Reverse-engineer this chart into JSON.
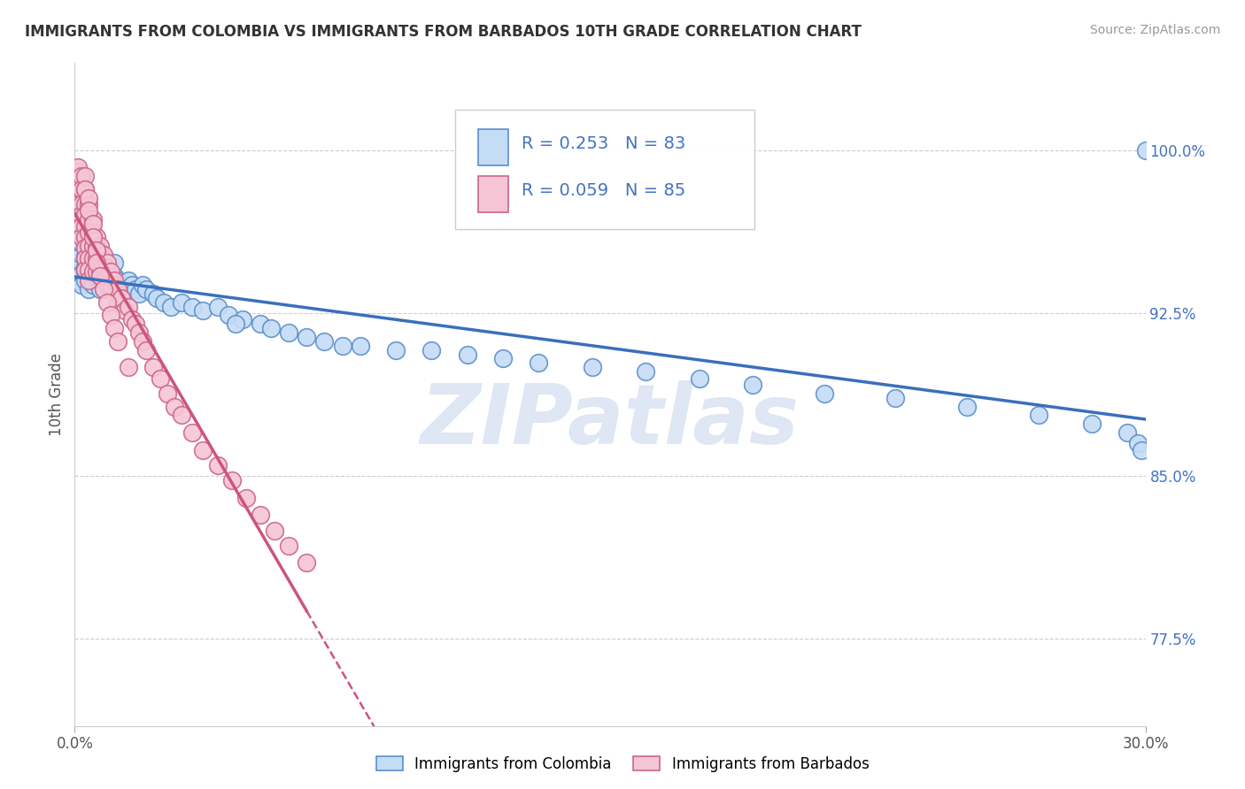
{
  "title": "IMMIGRANTS FROM COLOMBIA VS IMMIGRANTS FROM BARBADOS 10TH GRADE CORRELATION CHART",
  "source": "Source: ZipAtlas.com",
  "ylabel": "10th Grade",
  "ytick_labels": [
    "77.5%",
    "85.0%",
    "92.5%",
    "100.0%"
  ],
  "ytick_values": [
    0.775,
    0.85,
    0.925,
    1.0
  ],
  "xmin": 0.0,
  "xmax": 0.3,
  "ymin": 0.735,
  "ymax": 1.04,
  "legend_r_colombia": "0.253",
  "legend_n_colombia": "83",
  "legend_r_barbados": "0.059",
  "legend_n_barbados": "85",
  "color_colombia_fill": "#c5dcf5",
  "color_barbados_fill": "#f5c5d5",
  "color_colombia_edge": "#5b8fcc",
  "color_barbados_edge": "#cc6688",
  "color_colombia_line": "#3a6fbc",
  "color_barbados_line": "#cc5577",
  "color_text": "#4472c4",
  "color_grid": "#cccccc",
  "watermark_text": "ZIPatlas",
  "watermark_color": "#c8d8ec",
  "colombia_x": [
    0.001,
    0.001,
    0.001,
    0.001,
    0.002,
    0.002,
    0.002,
    0.002,
    0.002,
    0.003,
    0.003,
    0.003,
    0.003,
    0.003,
    0.003,
    0.004,
    0.004,
    0.004,
    0.004,
    0.004,
    0.005,
    0.005,
    0.005,
    0.005,
    0.006,
    0.006,
    0.006,
    0.007,
    0.007,
    0.007,
    0.008,
    0.008,
    0.009,
    0.009,
    0.01,
    0.01,
    0.011,
    0.011,
    0.012,
    0.013,
    0.014,
    0.015,
    0.016,
    0.017,
    0.018,
    0.019,
    0.02,
    0.022,
    0.023,
    0.025,
    0.027,
    0.03,
    0.033,
    0.036,
    0.04,
    0.043,
    0.047,
    0.052,
    0.06,
    0.065,
    0.07,
    0.08,
    0.09,
    0.1,
    0.11,
    0.12,
    0.13,
    0.145,
    0.16,
    0.175,
    0.19,
    0.21,
    0.23,
    0.25,
    0.27,
    0.285,
    0.295,
    0.298,
    0.299,
    0.3,
    0.045,
    0.055,
    0.075
  ],
  "colombia_y": [
    0.945,
    0.95,
    0.955,
    0.94,
    0.948,
    0.943,
    0.952,
    0.957,
    0.938,
    0.944,
    0.951,
    0.946,
    0.955,
    0.94,
    0.96,
    0.942,
    0.948,
    0.936,
    0.952,
    0.944,
    0.943,
    0.95,
    0.938,
    0.955,
    0.941,
    0.947,
    0.954,
    0.94,
    0.948,
    0.936,
    0.943,
    0.95,
    0.938,
    0.946,
    0.944,
    0.939,
    0.942,
    0.948,
    0.94,
    0.938,
    0.936,
    0.94,
    0.938,
    0.936,
    0.934,
    0.938,
    0.936,
    0.934,
    0.932,
    0.93,
    0.928,
    0.93,
    0.928,
    0.926,
    0.928,
    0.924,
    0.922,
    0.92,
    0.916,
    0.914,
    0.912,
    0.91,
    0.908,
    0.908,
    0.906,
    0.904,
    0.902,
    0.9,
    0.898,
    0.895,
    0.892,
    0.888,
    0.886,
    0.882,
    0.878,
    0.874,
    0.87,
    0.865,
    0.862,
    1.0,
    0.92,
    0.918,
    0.91
  ],
  "barbados_x": [
    0.001,
    0.001,
    0.001,
    0.001,
    0.001,
    0.002,
    0.002,
    0.002,
    0.002,
    0.002,
    0.002,
    0.003,
    0.003,
    0.003,
    0.003,
    0.003,
    0.003,
    0.003,
    0.003,
    0.004,
    0.004,
    0.004,
    0.004,
    0.004,
    0.004,
    0.004,
    0.005,
    0.005,
    0.005,
    0.005,
    0.005,
    0.006,
    0.006,
    0.006,
    0.006,
    0.007,
    0.007,
    0.007,
    0.008,
    0.008,
    0.008,
    0.009,
    0.009,
    0.01,
    0.01,
    0.011,
    0.012,
    0.012,
    0.013,
    0.014,
    0.015,
    0.016,
    0.017,
    0.018,
    0.019,
    0.02,
    0.022,
    0.024,
    0.026,
    0.028,
    0.03,
    0.033,
    0.036,
    0.04,
    0.044,
    0.048,
    0.052,
    0.056,
    0.06,
    0.065,
    0.003,
    0.003,
    0.004,
    0.004,
    0.005,
    0.005,
    0.006,
    0.006,
    0.007,
    0.008,
    0.009,
    0.01,
    0.011,
    0.012,
    0.015
  ],
  "barbados_y": [
    0.985,
    0.99,
    0.992,
    0.98,
    0.975,
    0.988,
    0.982,
    0.975,
    0.97,
    0.965,
    0.96,
    0.982,
    0.975,
    0.97,
    0.965,
    0.96,
    0.955,
    0.95,
    0.945,
    0.975,
    0.968,
    0.962,
    0.956,
    0.95,
    0.945,
    0.94,
    0.968,
    0.962,
    0.956,
    0.95,
    0.944,
    0.96,
    0.955,
    0.95,
    0.944,
    0.956,
    0.95,
    0.944,
    0.952,
    0.946,
    0.94,
    0.948,
    0.942,
    0.944,
    0.938,
    0.94,
    0.936,
    0.93,
    0.932,
    0.926,
    0.928,
    0.922,
    0.92,
    0.916,
    0.912,
    0.908,
    0.9,
    0.895,
    0.888,
    0.882,
    0.878,
    0.87,
    0.862,
    0.855,
    0.848,
    0.84,
    0.832,
    0.825,
    0.818,
    0.81,
    0.988,
    0.982,
    0.978,
    0.972,
    0.966,
    0.96,
    0.954,
    0.948,
    0.942,
    0.936,
    0.93,
    0.924,
    0.918,
    0.912,
    0.9
  ]
}
